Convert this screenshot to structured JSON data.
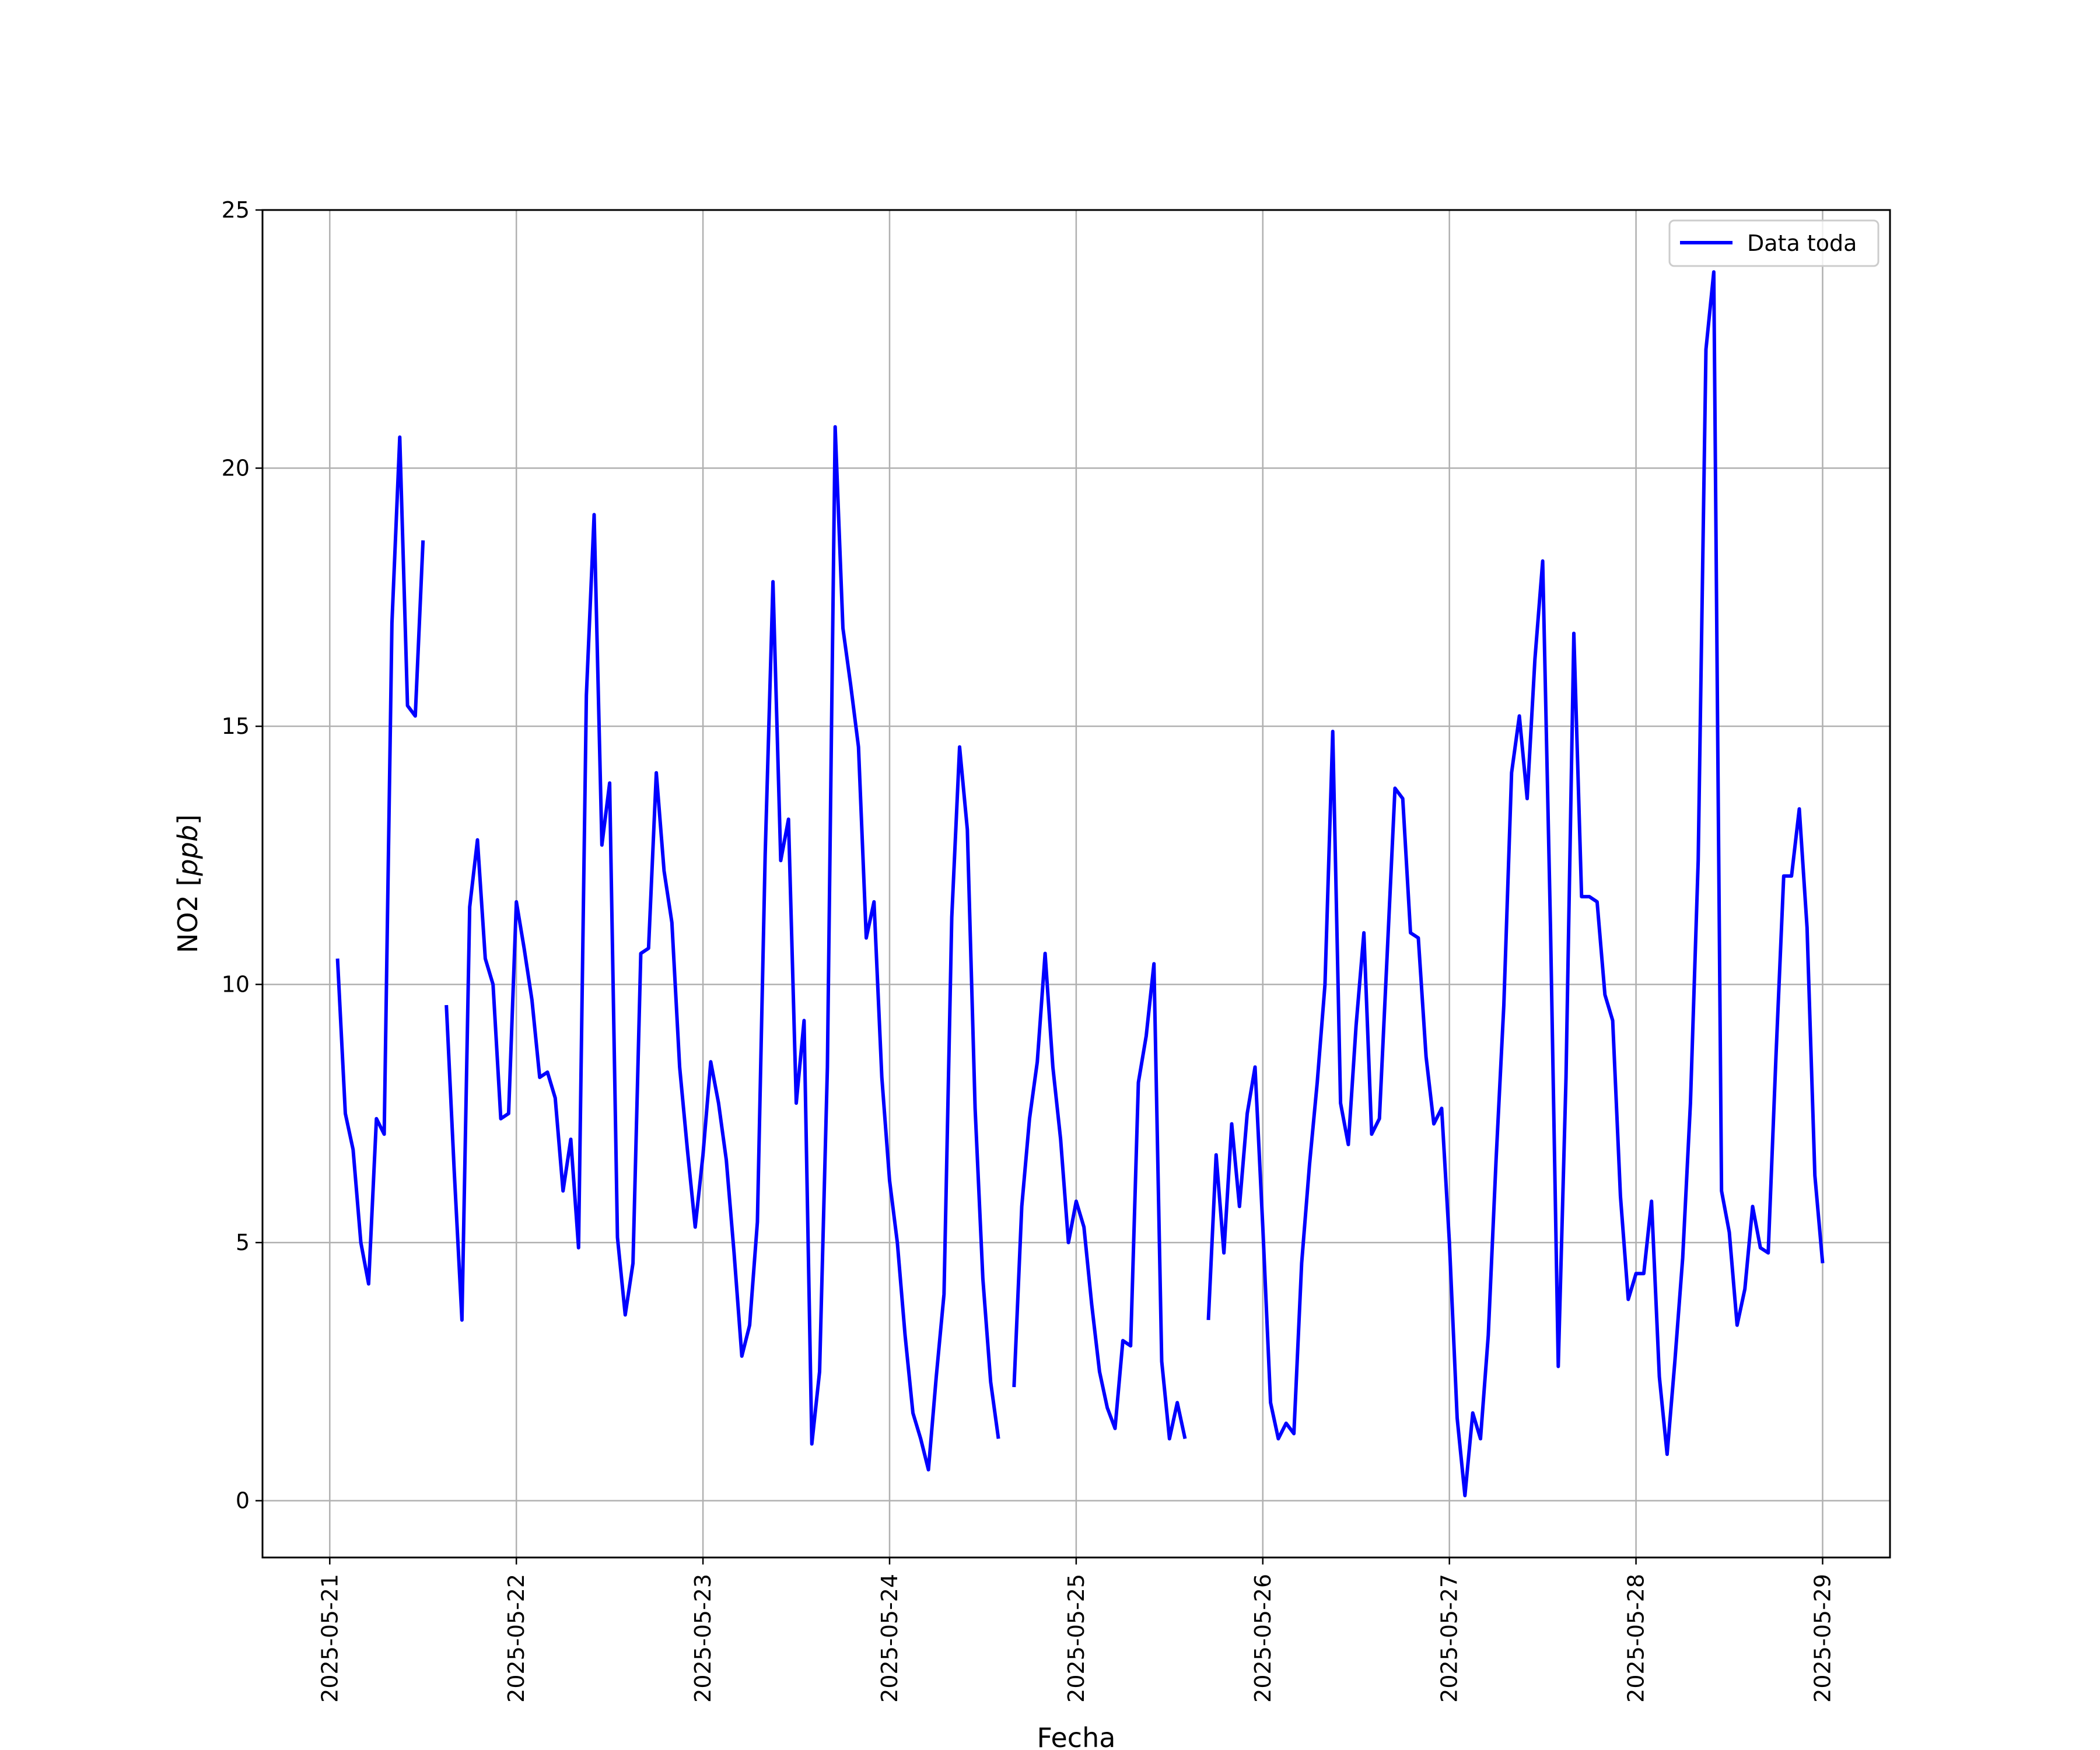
{
  "chart_data": {
    "type": "line",
    "xlabel": "Fecha",
    "ylabel_text": "NO2 [",
    "ylabel_unit": "ppb",
    "ylabel_close": "]",
    "ylim": [
      -1.1,
      25.0
    ],
    "xlim": [
      "2025-05-20 15:21",
      "2025-05-29 08:40"
    ],
    "yticks": [
      0,
      5,
      10,
      15,
      20,
      25
    ],
    "xticks": [
      "2025-05-21",
      "2025-05-22",
      "2025-05-23",
      "2025-05-24",
      "2025-05-25",
      "2025-05-26",
      "2025-05-27",
      "2025-05-28",
      "2025-05-29"
    ],
    "grid": true,
    "legend_position": "top-right",
    "color": "#0000ff",
    "series": [
      {
        "name": "Data toda",
        "segments": [
          [
            [
              "2025-05-21 01:00",
              10.5
            ],
            [
              "2025-05-21 02:00",
              7.5
            ],
            [
              "2025-05-21 03:00",
              6.8
            ],
            [
              "2025-05-21 04:00",
              5.0
            ],
            [
              "2025-05-21 05:00",
              4.2
            ],
            [
              "2025-05-21 06:00",
              7.4
            ],
            [
              "2025-05-21 07:00",
              7.1
            ],
            [
              "2025-05-21 08:00",
              17.0
            ],
            [
              "2025-05-21 09:00",
              20.6
            ],
            [
              "2025-05-21 10:00",
              15.4
            ],
            [
              "2025-05-21 11:00",
              15.2
            ],
            [
              "2025-05-21 12:00",
              18.6
            ]
          ],
          [
            [
              "2025-05-21 15:00",
              9.6
            ],
            [
              "2025-05-21 16:00",
              6.4
            ],
            [
              "2025-05-21 17:00",
              3.5
            ],
            [
              "2025-05-21 18:00",
              11.5
            ],
            [
              "2025-05-21 19:00",
              12.8
            ],
            [
              "2025-05-21 20:00",
              10.5
            ],
            [
              "2025-05-21 21:00",
              10.0
            ],
            [
              "2025-05-21 22:00",
              7.4
            ],
            [
              "2025-05-21 23:00",
              7.5
            ],
            [
              "2025-05-22 00:00",
              11.6
            ],
            [
              "2025-05-22 01:00",
              10.7
            ],
            [
              "2025-05-22 02:00",
              9.7
            ],
            [
              "2025-05-22 03:00",
              8.2
            ],
            [
              "2025-05-22 04:00",
              8.3
            ],
            [
              "2025-05-22 05:00",
              7.8
            ],
            [
              "2025-05-22 06:00",
              6.0
            ],
            [
              "2025-05-22 07:00",
              7.0
            ],
            [
              "2025-05-22 08:00",
              4.9
            ],
            [
              "2025-05-22 09:00",
              15.6
            ],
            [
              "2025-05-22 10:00",
              19.1
            ],
            [
              "2025-05-22 11:00",
              12.7
            ],
            [
              "2025-05-22 12:00",
              13.9
            ],
            [
              "2025-05-22 13:00",
              5.1
            ],
            [
              "2025-05-22 14:00",
              3.6
            ],
            [
              "2025-05-22 15:00",
              4.6
            ],
            [
              "2025-05-22 16:00",
              10.6
            ],
            [
              "2025-05-22 17:00",
              10.7
            ],
            [
              "2025-05-22 18:00",
              14.1
            ],
            [
              "2025-05-22 19:00",
              12.2
            ],
            [
              "2025-05-22 20:00",
              11.2
            ],
            [
              "2025-05-22 21:00",
              8.4
            ],
            [
              "2025-05-22 22:00",
              6.8
            ],
            [
              "2025-05-22 23:00",
              5.3
            ],
            [
              "2025-05-23 00:00",
              6.7
            ],
            [
              "2025-05-23 01:00",
              8.5
            ],
            [
              "2025-05-23 02:00",
              7.7
            ],
            [
              "2025-05-23 03:00",
              6.6
            ],
            [
              "2025-05-23 04:00",
              4.8
            ],
            [
              "2025-05-23 05:00",
              2.8
            ],
            [
              "2025-05-23 06:00",
              3.4
            ],
            [
              "2025-05-23 07:00",
              5.4
            ],
            [
              "2025-05-23 08:00",
              12.5
            ],
            [
              "2025-05-23 09:00",
              17.8
            ],
            [
              "2025-05-23 10:00",
              12.4
            ],
            [
              "2025-05-23 11:00",
              13.2
            ],
            [
              "2025-05-23 12:00",
              7.7
            ],
            [
              "2025-05-23 13:00",
              9.3
            ],
            [
              "2025-05-23 14:00",
              1.1
            ],
            [
              "2025-05-23 15:00",
              2.5
            ],
            [
              "2025-05-23 16:00",
              8.4
            ],
            [
              "2025-05-23 17:00",
              20.8
            ],
            [
              "2025-05-23 18:00",
              16.9
            ],
            [
              "2025-05-23 19:00",
              15.8
            ],
            [
              "2025-05-23 20:00",
              14.6
            ],
            [
              "2025-05-23 21:00",
              10.9
            ],
            [
              "2025-05-23 22:00",
              11.6
            ],
            [
              "2025-05-23 23:00",
              8.2
            ],
            [
              "2025-05-24 00:00",
              6.2
            ],
            [
              "2025-05-24 01:00",
              5.0
            ],
            [
              "2025-05-24 02:00",
              3.2
            ],
            [
              "2025-05-24 03:00",
              1.7
            ],
            [
              "2025-05-24 04:00",
              1.2
            ],
            [
              "2025-05-24 05:00",
              0.6
            ],
            [
              "2025-05-24 06:00",
              2.4
            ],
            [
              "2025-05-24 07:00",
              4.0
            ],
            [
              "2025-05-24 08:00",
              11.3
            ],
            [
              "2025-05-24 09:00",
              14.6
            ],
            [
              "2025-05-24 10:00",
              13.0
            ],
            [
              "2025-05-24 11:00",
              7.6
            ],
            [
              "2025-05-24 12:00",
              4.3
            ],
            [
              "2025-05-24 13:00",
              2.3
            ],
            [
              "2025-05-24 14:00",
              1.2
            ]
          ],
          [
            [
              "2025-05-24 16:00",
              2.2
            ],
            [
              "2025-05-24 17:00",
              5.7
            ],
            [
              "2025-05-24 18:00",
              7.4
            ],
            [
              "2025-05-24 19:00",
              8.5
            ],
            [
              "2025-05-24 20:00",
              10.6
            ],
            [
              "2025-05-24 21:00",
              8.4
            ],
            [
              "2025-05-24 22:00",
              7.0
            ],
            [
              "2025-05-24 23:00",
              5.0
            ],
            [
              "2025-05-25 00:00",
              5.8
            ],
            [
              "2025-05-25 01:00",
              5.3
            ],
            [
              "2025-05-25 02:00",
              3.8
            ],
            [
              "2025-05-25 03:00",
              2.5
            ],
            [
              "2025-05-25 04:00",
              1.8
            ],
            [
              "2025-05-25 05:00",
              1.4
            ],
            [
              "2025-05-25 06:00",
              3.1
            ],
            [
              "2025-05-25 07:00",
              3.0
            ],
            [
              "2025-05-25 08:00",
              8.1
            ],
            [
              "2025-05-25 09:00",
              9.0
            ],
            [
              "2025-05-25 10:00",
              10.4
            ],
            [
              "2025-05-25 11:00",
              2.7
            ],
            [
              "2025-05-25 12:00",
              1.2
            ],
            [
              "2025-05-25 13:00",
              1.9
            ],
            [
              "2025-05-25 14:00",
              1.2
            ]
          ],
          [
            [
              "2025-05-25 17:00",
              3.5
            ],
            [
              "2025-05-25 18:00",
              6.7
            ],
            [
              "2025-05-25 19:00",
              4.8
            ],
            [
              "2025-05-25 20:00",
              7.3
            ],
            [
              "2025-05-25 21:00",
              5.7
            ],
            [
              "2025-05-25 22:00",
              7.5
            ],
            [
              "2025-05-25 23:00",
              8.4
            ],
            [
              "2025-05-26 00:00",
              5.3
            ],
            [
              "2025-05-26 01:00",
              1.9
            ],
            [
              "2025-05-26 02:00",
              1.2
            ],
            [
              "2025-05-26 03:00",
              1.5
            ],
            [
              "2025-05-26 04:00",
              1.3
            ],
            [
              "2025-05-26 05:00",
              4.6
            ],
            [
              "2025-05-26 06:00",
              6.5
            ],
            [
              "2025-05-26 07:00",
              8.1
            ],
            [
              "2025-05-26 08:00",
              10.0
            ],
            [
              "2025-05-26 09:00",
              14.9
            ],
            [
              "2025-05-26 10:00",
              7.7
            ],
            [
              "2025-05-26 11:00",
              6.9
            ],
            [
              "2025-05-26 12:00",
              9.2
            ],
            [
              "2025-05-26 13:00",
              11.0
            ],
            [
              "2025-05-26 14:00",
              7.1
            ],
            [
              "2025-05-26 15:00",
              7.4
            ],
            [
              "2025-05-26 16:00",
              10.6
            ],
            [
              "2025-05-26 17:00",
              13.8
            ],
            [
              "2025-05-26 18:00",
              13.6
            ],
            [
              "2025-05-26 19:00",
              11.0
            ],
            [
              "2025-05-26 20:00",
              10.9
            ],
            [
              "2025-05-26 21:00",
              8.6
            ],
            [
              "2025-05-26 22:00",
              7.3
            ],
            [
              "2025-05-26 23:00",
              7.6
            ],
            [
              "2025-05-27 00:00",
              5.0
            ],
            [
              "2025-05-27 01:00",
              1.6
            ],
            [
              "2025-05-27 02:00",
              0.1
            ],
            [
              "2025-05-27 03:00",
              1.7
            ],
            [
              "2025-05-27 04:00",
              1.2
            ],
            [
              "2025-05-27 05:00",
              3.2
            ],
            [
              "2025-05-27 06:00",
              6.6
            ],
            [
              "2025-05-27 07:00",
              9.6
            ],
            [
              "2025-05-27 08:00",
              14.1
            ],
            [
              "2025-05-27 09:00",
              15.2
            ],
            [
              "2025-05-27 10:00",
              13.6
            ],
            [
              "2025-05-27 11:00",
              16.3
            ],
            [
              "2025-05-27 12:00",
              18.2
            ],
            [
              "2025-05-27 13:00",
              11.1
            ],
            [
              "2025-05-27 14:00",
              2.6
            ],
            [
              "2025-05-27 15:00",
              8.2
            ],
            [
              "2025-05-27 16:00",
              16.8
            ],
            [
              "2025-05-27 17:00",
              11.7
            ],
            [
              "2025-05-27 18:00",
              11.7
            ],
            [
              "2025-05-27 19:00",
              11.6
            ],
            [
              "2025-05-27 20:00",
              9.8
            ],
            [
              "2025-05-27 21:00",
              9.3
            ],
            [
              "2025-05-27 22:00",
              5.9
            ],
            [
              "2025-05-27 23:00",
              3.9
            ],
            [
              "2025-05-28 00:00",
              4.4
            ],
            [
              "2025-05-28 01:00",
              4.4
            ],
            [
              "2025-05-28 02:00",
              5.8
            ],
            [
              "2025-05-28 03:00",
              2.4
            ],
            [
              "2025-05-28 04:00",
              0.9
            ],
            [
              "2025-05-28 05:00",
              2.7
            ],
            [
              "2025-05-28 06:00",
              4.7
            ],
            [
              "2025-05-28 07:00",
              7.7
            ],
            [
              "2025-05-28 08:00",
              12.4
            ],
            [
              "2025-05-28 09:00",
              22.3
            ],
            [
              "2025-05-28 10:00",
              23.8
            ],
            [
              "2025-05-28 11:00",
              6.0
            ],
            [
              "2025-05-28 12:00",
              5.2
            ],
            [
              "2025-05-28 13:00",
              3.4
            ],
            [
              "2025-05-28 14:00",
              4.1
            ],
            [
              "2025-05-28 15:00",
              5.7
            ],
            [
              "2025-05-28 16:00",
              4.9
            ],
            [
              "2025-05-28 17:00",
              4.8
            ],
            [
              "2025-05-28 18:00",
              8.6
            ],
            [
              "2025-05-28 19:00",
              12.1
            ],
            [
              "2025-05-28 20:00",
              12.1
            ],
            [
              "2025-05-28 21:00",
              13.4
            ],
            [
              "2025-05-28 22:00",
              11.1
            ],
            [
              "2025-05-28 23:00",
              6.3
            ],
            [
              "2025-05-29 00:00",
              4.6
            ]
          ]
        ]
      }
    ]
  }
}
